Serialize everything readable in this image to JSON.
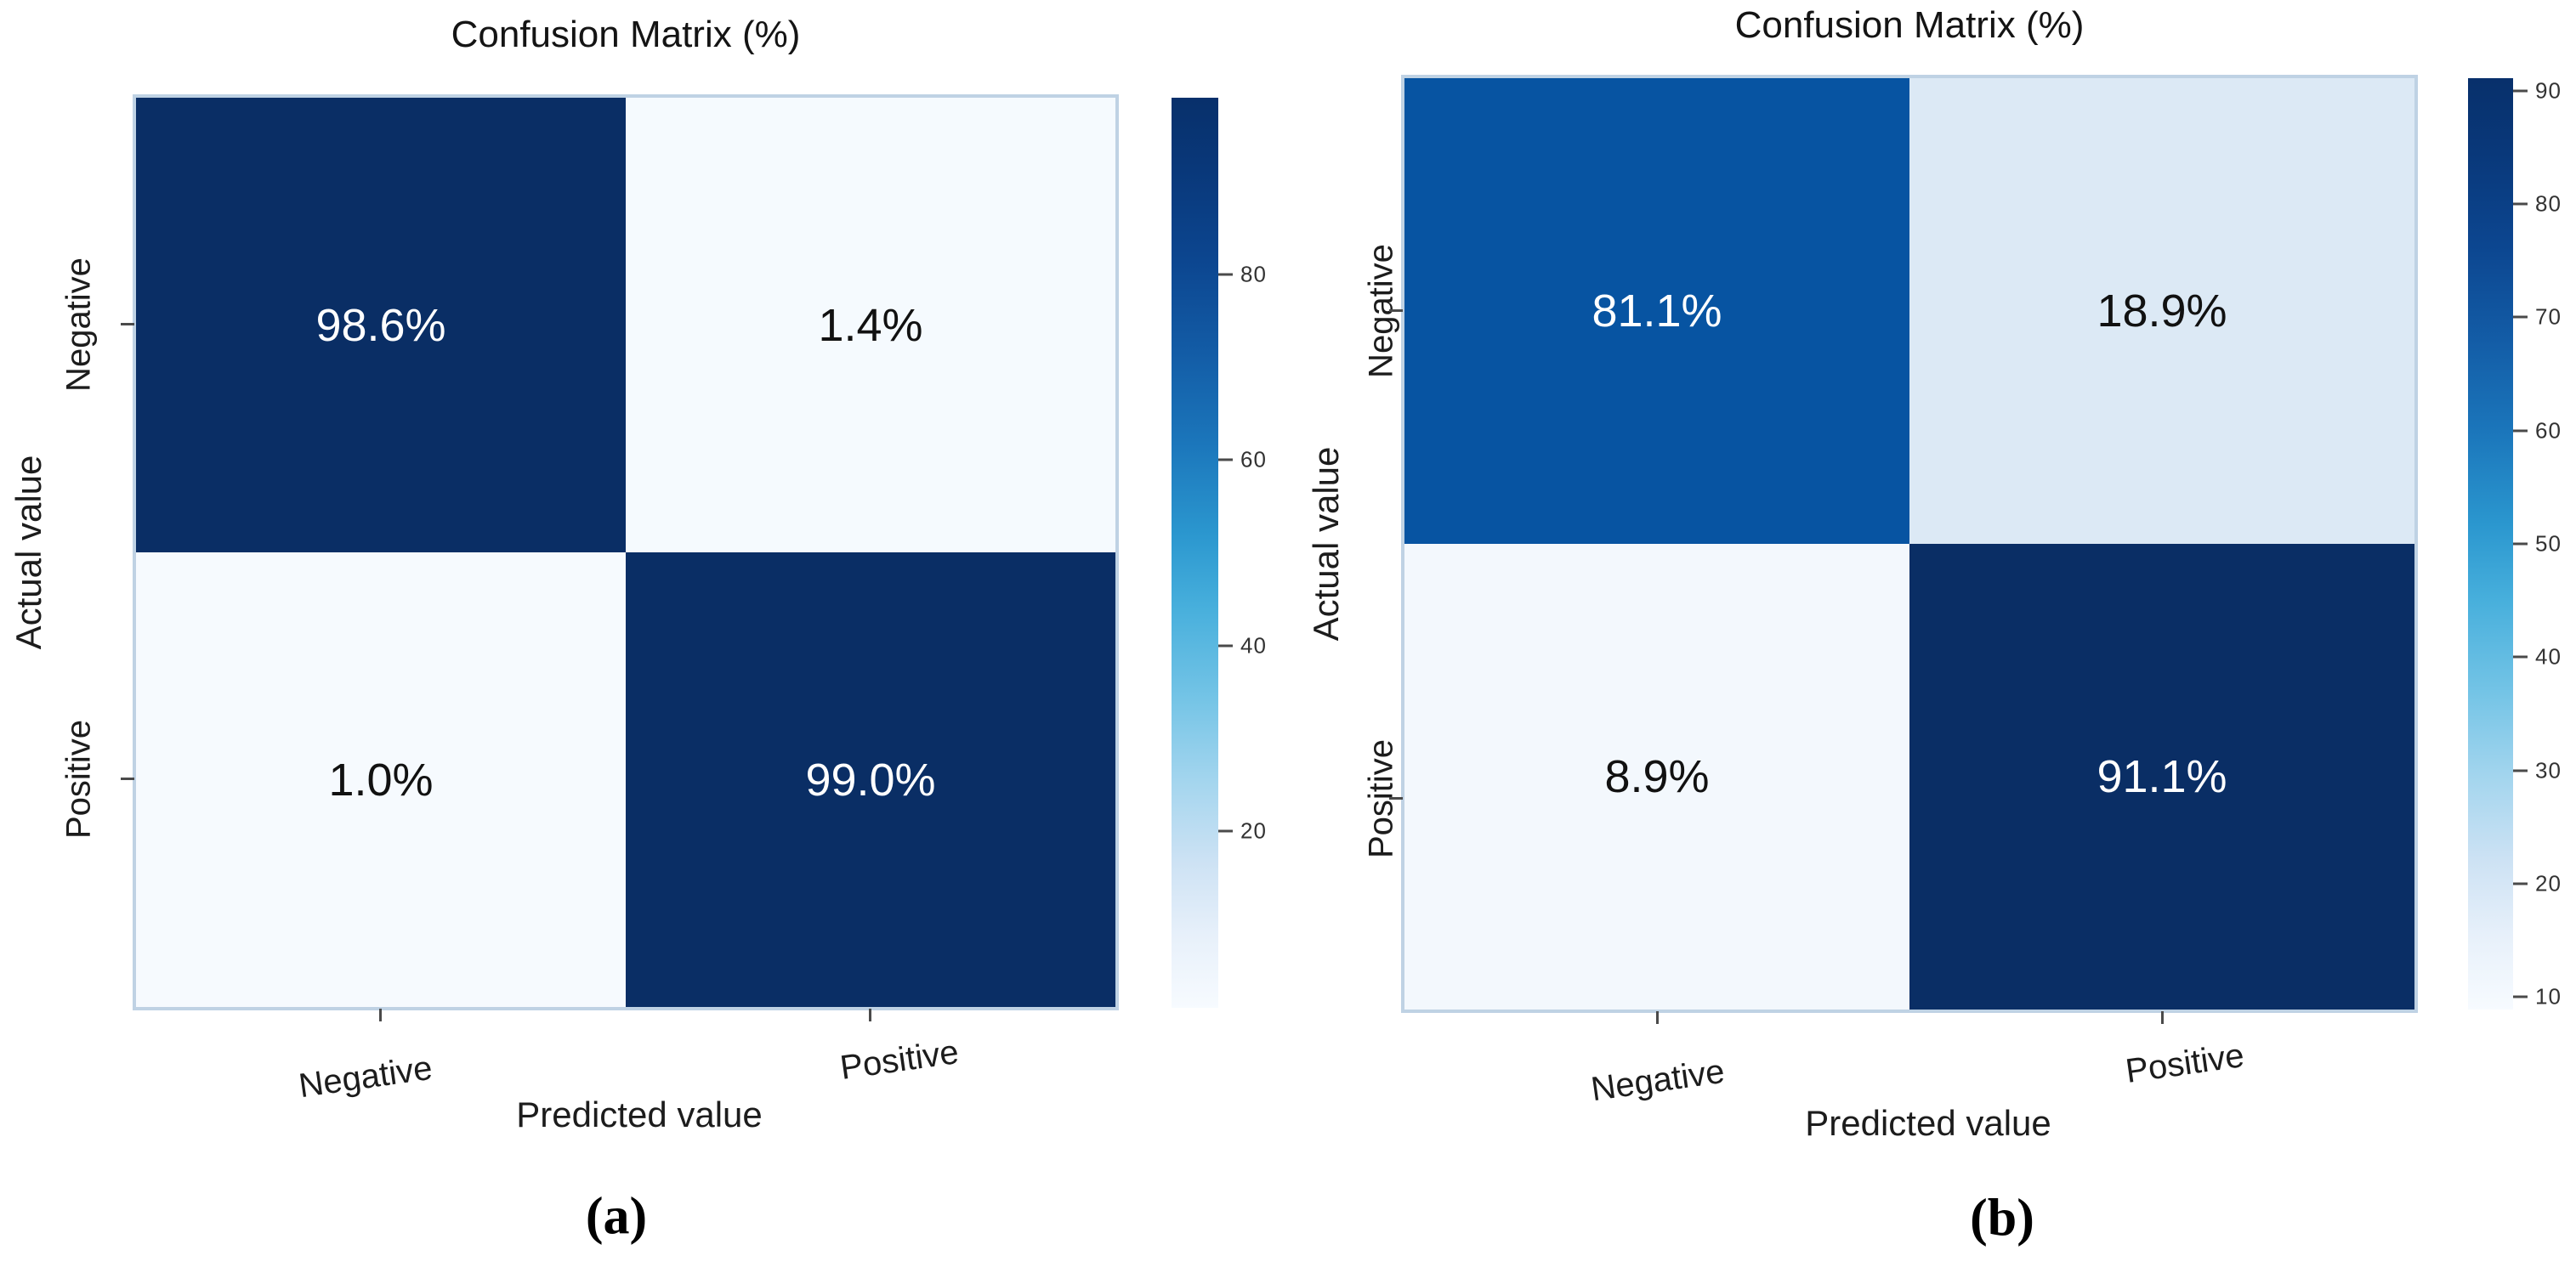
{
  "chart_data": [
    {
      "type": "heatmap",
      "panel_caption": "(a)",
      "title": "Confusion Matrix (%)",
      "xlabel": "Predicted value",
      "ylabel": "Actual value",
      "x_ticklabels": [
        "Negative",
        "Positive"
      ],
      "y_ticklabels": [
        "Negative",
        "Positive"
      ],
      "rows": [
        [
          98.6,
          1.4
        ],
        [
          1.0,
          99.0
        ]
      ],
      "cell_labels": [
        [
          "98.6%",
          "1.4%"
        ],
        [
          "1.0%",
          "99.0%"
        ]
      ],
      "cell_colors": [
        [
          "#0a2e65",
          "#f5fafe"
        ],
        [
          "#f6fafe",
          "#0a2e65"
        ]
      ],
      "cell_text_colors": [
        [
          "#ffffff",
          "#111111"
        ],
        [
          "#111111",
          "#ffffff"
        ]
      ],
      "colorbar": {
        "ticks": [
          20,
          40,
          60,
          80
        ],
        "vmin": 1.0,
        "vmax": 99.0
      },
      "legend_position": "right",
      "grid": false
    },
    {
      "type": "heatmap",
      "panel_caption": "(b)",
      "title": "Confusion Matrix (%)",
      "xlabel": "Predicted value",
      "ylabel": "Actual value",
      "x_ticklabels": [
        "Negative",
        "Positive"
      ],
      "y_ticklabels": [
        "Negative",
        "Positive"
      ],
      "rows": [
        [
          81.1,
          18.9
        ],
        [
          8.9,
          91.1
        ]
      ],
      "cell_labels": [
        [
          "81.1%",
          "18.9%"
        ],
        [
          "8.9%",
          "91.1%"
        ]
      ],
      "cell_colors": [
        [
          "#0754a2",
          "#dce9f5"
        ],
        [
          "#f3f8fd",
          "#0a2e65"
        ]
      ],
      "cell_text_colors": [
        [
          "#ffffff",
          "#111111"
        ],
        [
          "#111111",
          "#ffffff"
        ]
      ],
      "colorbar": {
        "ticks": [
          10,
          20,
          30,
          40,
          50,
          60,
          70,
          80,
          90
        ],
        "vmin": 8.9,
        "vmax": 91.1
      },
      "legend_position": "right",
      "grid": false
    }
  ],
  "colors": {
    "colormap_top": "#08306b",
    "colormap_bottom": "#f7fbff",
    "axis_text": "#1c1c1c",
    "colorbar_tick_text": "#333333",
    "background": "#ffffff"
  }
}
